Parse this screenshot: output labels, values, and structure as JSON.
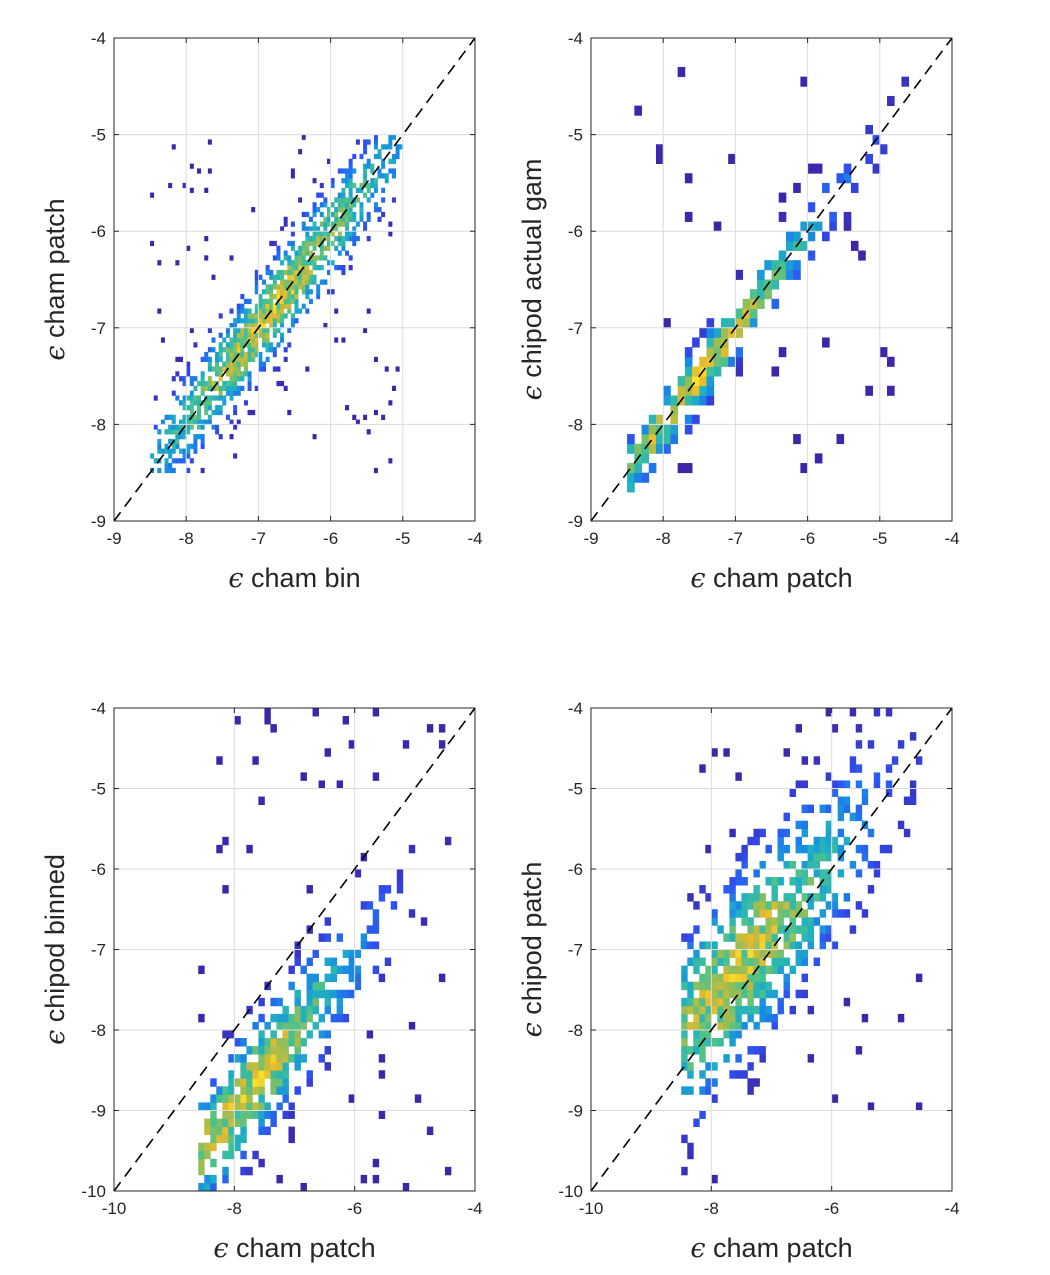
{
  "figure": {
    "colors": {
      "axis": "#262626",
      "grid": "#dcdcdc",
      "background": "#ffffff",
      "identity_line": "#000000",
      "colormap": [
        "#3e26a8",
        "#2f4ff1",
        "#1a87e5",
        "#1fb0c3",
        "#4dc28a",
        "#a4bd4d",
        "#e8ba2f",
        "#fae42a"
      ]
    }
  },
  "chart_data": [
    {
      "type": "heatmap",
      "xlabel": {
        "symbol": "ϵ",
        "text": "cham bin"
      },
      "ylabel": {
        "symbol": "ϵ",
        "text": "cham patch"
      },
      "xlim": [
        -9,
        -4
      ],
      "ylim": [
        -9,
        -4
      ],
      "xticks": [
        "-9",
        "-8",
        "-7",
        "-6",
        "-5",
        "-4"
      ],
      "yticks": [
        "-9",
        "-8",
        "-7",
        "-6",
        "-5",
        "-4"
      ],
      "grid": true,
      "identity_line": true,
      "cloud": {
        "x_range": [
          -8.5,
          -5.0
        ],
        "y_range": [
          -8.5,
          -5.0
        ],
        "peak_at": [
          -6.8,
          -6.8
        ],
        "bin_size": 0.05,
        "spread": 0.3
      }
    },
    {
      "type": "heatmap",
      "xlabel": {
        "symbol": "ϵ",
        "text": "cham patch"
      },
      "ylabel": {
        "symbol": "ϵ",
        "text": "chipod actual gam"
      },
      "xlim": [
        -9,
        -4
      ],
      "ylim": [
        -9,
        -4
      ],
      "xticks": [
        "-9",
        "-8",
        "-7",
        "-6",
        "-5",
        "-4"
      ],
      "yticks": [
        "-9",
        "-8",
        "-7",
        "-6",
        "-5",
        "-4"
      ],
      "grid": true,
      "identity_line": true,
      "cloud": {
        "x_range": [
          -8.5,
          -4.5
        ],
        "y_range": [
          -8.9,
          -4.3
        ],
        "peak_at": [
          -7.5,
          -7.5
        ],
        "bin_size": 0.1,
        "spread": 0.2
      }
    },
    {
      "type": "heatmap",
      "xlabel": {
        "symbol": "ϵ",
        "text": "cham patch"
      },
      "ylabel": {
        "symbol": "ϵ",
        "text": "chipod binned"
      },
      "xlim": [
        -10,
        -4
      ],
      "ylim": [
        -10,
        -4
      ],
      "xticks": [
        "-10",
        "-8",
        "-6",
        "-4"
      ],
      "yticks": [
        "-10",
        "-9",
        "-8",
        "-7",
        "-6",
        "-5",
        "-4"
      ],
      "grid": true,
      "identity_line": true,
      "cloud": {
        "x_range": [
          -8.6,
          -4.4
        ],
        "y_range": [
          -10.0,
          -4.0
        ],
        "peak_at": [
          -7.8,
          -8.8
        ],
        "bin_size": 0.1,
        "spread": 0.45
      }
    },
    {
      "type": "heatmap",
      "xlabel": {
        "symbol": "ϵ",
        "text": "cham patch"
      },
      "ylabel": {
        "symbol": "ϵ",
        "text": "chipod patch"
      },
      "xlim": [
        -10,
        -4
      ],
      "ylim": [
        -10,
        -4
      ],
      "xticks": [
        "-10",
        "-8",
        "-6",
        "-4"
      ],
      "yticks": [
        "-10",
        "-9",
        "-8",
        "-7",
        "-6",
        "-5",
        "-4"
      ],
      "grid": true,
      "identity_line": true,
      "cloud": {
        "x_range": [
          -8.5,
          -4.4
        ],
        "y_range": [
          -9.9,
          -4.0
        ],
        "peak_at": [
          -7.5,
          -7.2
        ],
        "bin_size": 0.1,
        "spread": 0.7
      }
    }
  ]
}
